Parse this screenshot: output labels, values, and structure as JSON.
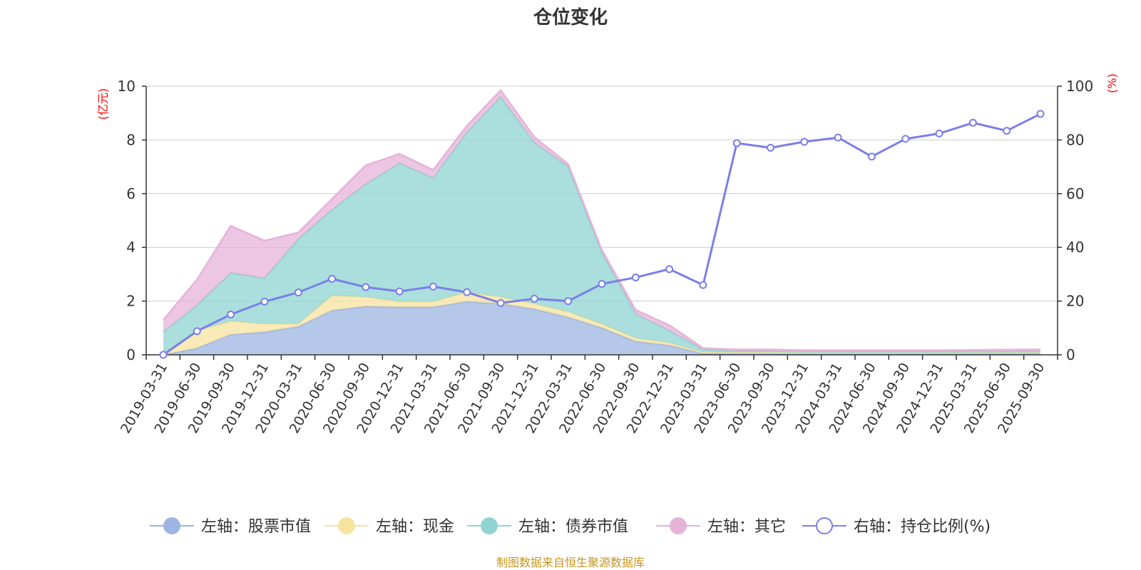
{
  "chart_data": {
    "type": "area",
    "title": "仓位变化",
    "left_axis_unit": "(亿元)",
    "right_axis_unit": "(%)",
    "ylim_left": [
      0,
      10
    ],
    "ylim_right": [
      0,
      100
    ],
    "yticks_left": [
      "0",
      "2",
      "4",
      "6",
      "8",
      "10"
    ],
    "yticks_right": [
      "0",
      "20",
      "40",
      "60",
      "80",
      "100"
    ],
    "categories": [
      "2019-03-31",
      "2019-06-30",
      "2019-09-30",
      "2019-12-31",
      "2020-03-31",
      "2020-06-30",
      "2020-09-30",
      "2020-12-31",
      "2021-03-31",
      "2021-06-30",
      "2021-09-30",
      "2021-12-31",
      "2022-03-31",
      "2022-06-30",
      "2022-09-30",
      "2022-12-31",
      "2023-03-31",
      "2023-06-30",
      "2023-09-30",
      "2023-12-31",
      "2024-03-31",
      "2024-06-30",
      "2024-09-30",
      "2024-12-31",
      "2025-03-31",
      "2025-06-30",
      "2025-09-30"
    ],
    "grid": true,
    "legend_position": "bottom",
    "series": [
      {
        "name": "左轴：股票市值",
        "axis": "left",
        "stacked": true,
        "color": "#9db5e2",
        "values": [
          0.0,
          0.25,
          0.75,
          0.85,
          1.05,
          1.65,
          1.8,
          1.78,
          1.78,
          1.98,
          1.9,
          1.7,
          1.4,
          1.0,
          0.5,
          0.35,
          0.05,
          0.07,
          0.07,
          0.06,
          0.06,
          0.06,
          0.06,
          0.06,
          0.07,
          0.07,
          0.08
        ]
      },
      {
        "name": "左轴：现金",
        "axis": "left",
        "stacked": true,
        "color": "#f7e3a0",
        "values": [
          0.05,
          0.65,
          0.5,
          0.3,
          0.1,
          0.55,
          0.35,
          0.2,
          0.2,
          0.35,
          0.25,
          0.2,
          0.2,
          0.15,
          0.12,
          0.1,
          0.05,
          0.02,
          0.02,
          0.02,
          0.02,
          0.02,
          0.02,
          0.02,
          0.02,
          0.02,
          0.02
        ]
      },
      {
        "name": "左轴：债券市值",
        "axis": "left",
        "stacked": true,
        "color": "#8fd4d2",
        "values": [
          0.8,
          0.95,
          1.8,
          1.7,
          3.15,
          3.2,
          4.2,
          5.15,
          4.6,
          5.95,
          7.45,
          6.0,
          5.4,
          2.65,
          0.9,
          0.45,
          0.1,
          0.05,
          0.05,
          0.03,
          0.03,
          0.03,
          0.03,
          0.03,
          0.03,
          0.03,
          0.03
        ]
      },
      {
        "name": "左轴：其它",
        "axis": "left",
        "stacked": true,
        "color": "#e6b3d8",
        "values": [
          0.45,
          0.95,
          1.75,
          1.4,
          0.25,
          0.4,
          0.7,
          0.35,
          0.3,
          0.25,
          0.25,
          0.2,
          0.1,
          0.1,
          0.15,
          0.2,
          0.05,
          0.06,
          0.06,
          0.06,
          0.06,
          0.06,
          0.06,
          0.06,
          0.06,
          0.07,
          0.07
        ]
      },
      {
        "name": "右轴：持仓比例(%)",
        "axis": "right",
        "type": "line",
        "color": "#7b7fe8",
        "values": [
          0,
          8.8,
          15,
          19.8,
          23.2,
          28.3,
          25.2,
          23.6,
          25.4,
          23.3,
          19.3,
          20.9,
          20.0,
          26.4,
          28.8,
          31.9,
          26.0,
          78.8,
          77.1,
          79.3,
          80.9,
          73.8,
          80.4,
          82.4,
          86.4,
          83.4,
          89.7
        ]
      }
    ]
  },
  "source": "制图数据来自恒生聚源数据库"
}
